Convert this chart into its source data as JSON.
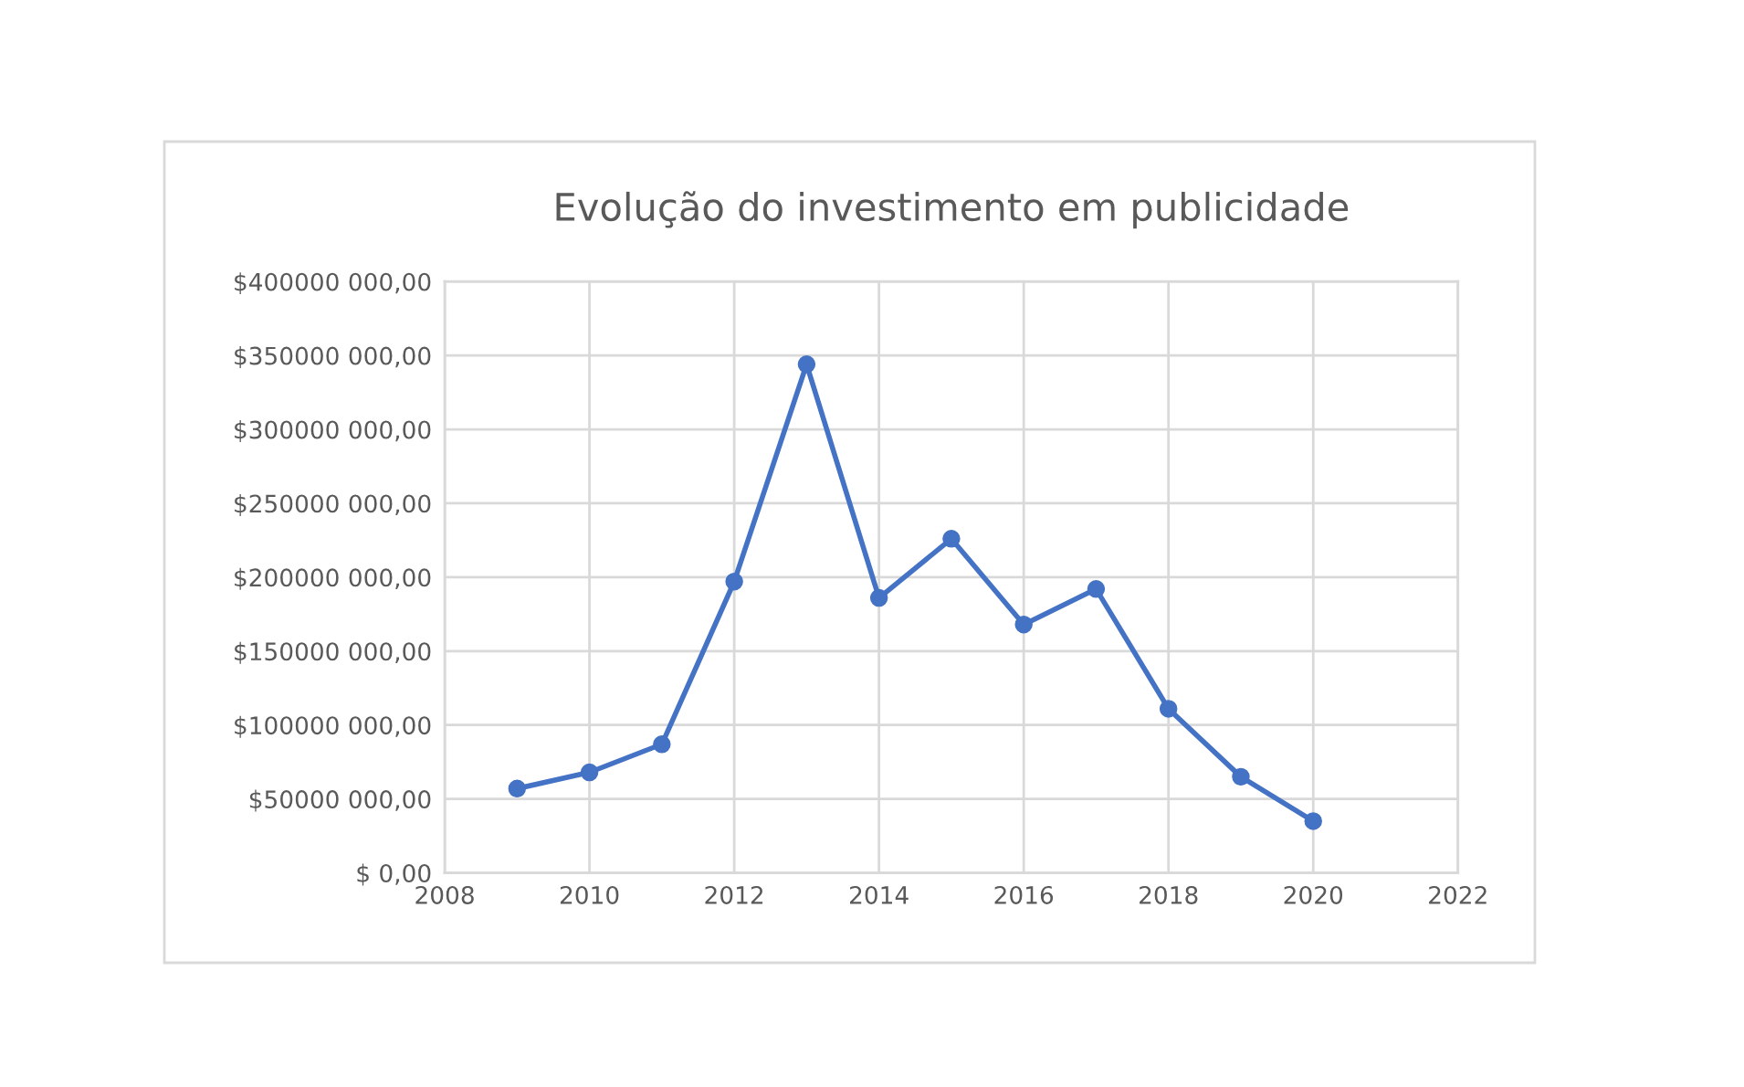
{
  "chart_data": {
    "type": "line",
    "title": "Evolução do investimento em publicidade",
    "x": [
      2009,
      2010,
      2011,
      2012,
      2013,
      2014,
      2015,
      2016,
      2017,
      2018,
      2019,
      2020
    ],
    "series": [
      {
        "color": "#4472c4",
        "values": [
          57000000,
          68000000,
          87000000,
          197000000,
          344000000,
          186000000,
          226000000,
          168000000,
          192000000,
          111000000,
          65000000,
          35000000
        ]
      }
    ],
    "xlim": [
      2008,
      2022
    ],
    "xticks": [
      2008,
      2010,
      2012,
      2014,
      2016,
      2018,
      2020,
      2022
    ],
    "ylim": [
      0,
      400000000
    ],
    "yticks": [
      {
        "value": 0,
        "label": "$ 0,00"
      },
      {
        "value": 50000000,
        "label": "$50000 000,00"
      },
      {
        "value": 100000000,
        "label": "$100000 000,00"
      },
      {
        "value": 150000000,
        "label": "$150000 000,00"
      },
      {
        "value": 200000000,
        "label": "$200000 000,00"
      },
      {
        "value": 250000000,
        "label": "$250000 000,00"
      },
      {
        "value": 300000000,
        "label": "$300000 000,00"
      },
      {
        "value": 350000000,
        "label": "$350000 000,00"
      },
      {
        "value": 400000000,
        "label": "$400000 000,00"
      }
    ],
    "grid": true,
    "marker": "circle",
    "line_style": "solid",
    "legend": false
  }
}
